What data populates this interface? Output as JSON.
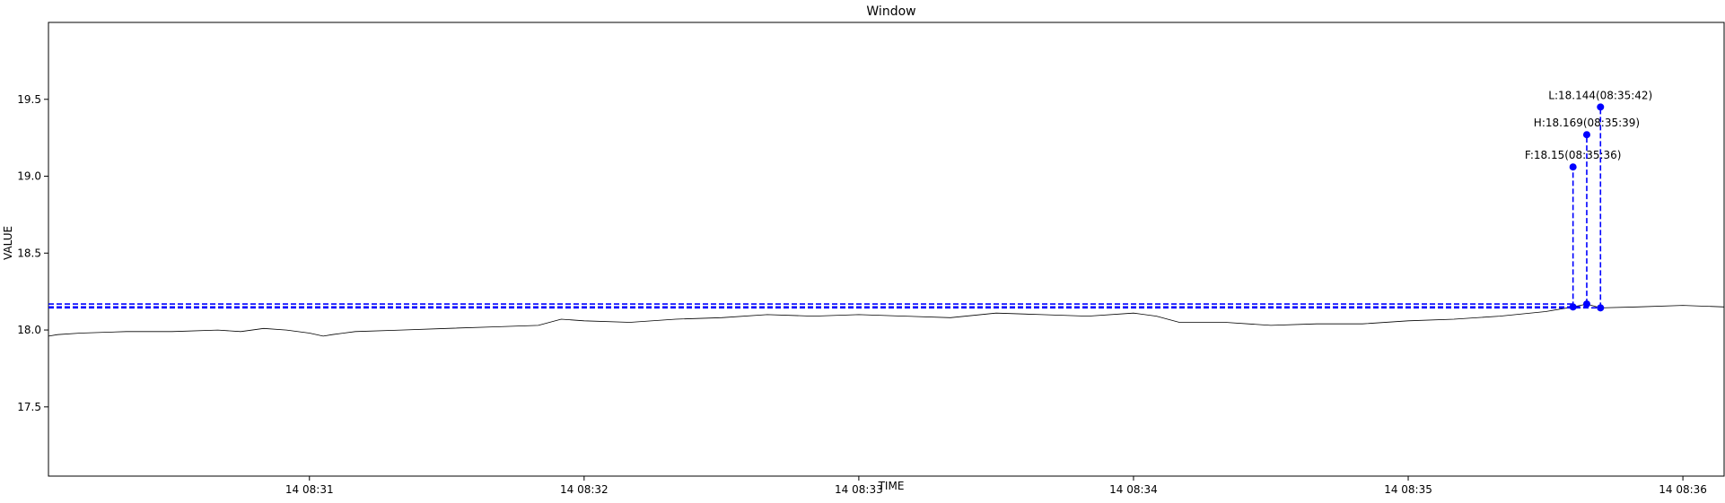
{
  "chart_data": {
    "type": "line",
    "title": "Window",
    "xlabel": "TIME",
    "ylabel": "VALUE",
    "x_range": [
      "08:30:03",
      "08:36:09"
    ],
    "ylim": [
      17.05,
      20.0
    ],
    "x_ticks": [
      {
        "label": "14 08:31",
        "t": "08:31:00"
      },
      {
        "label": "14 08:32",
        "t": "08:32:00"
      },
      {
        "label": "14 08:33",
        "t": "08:33:00"
      },
      {
        "label": "14 08:34",
        "t": "08:34:00"
      },
      {
        "label": "14 08:35",
        "t": "08:35:00"
      },
      {
        "label": "14 08:36",
        "t": "08:36:00"
      }
    ],
    "y_ticks": [
      {
        "label": "17.5",
        "v": 17.5
      },
      {
        "label": "18.0",
        "v": 18.0
      },
      {
        "label": "18.5",
        "v": 18.5
      },
      {
        "label": "19.0",
        "v": 19.0
      },
      {
        "label": "19.5",
        "v": 19.5
      }
    ],
    "series": [
      {
        "color": "#000000",
        "x": [
          "08:30:03",
          "08:30:05",
          "08:30:10",
          "08:30:20",
          "08:30:30",
          "08:30:40",
          "08:30:45",
          "08:30:50",
          "08:30:55",
          "08:31:00",
          "08:31:03",
          "08:31:05",
          "08:31:10",
          "08:31:20",
          "08:31:30",
          "08:31:40",
          "08:31:50",
          "08:31:55",
          "08:32:00",
          "08:32:10",
          "08:32:20",
          "08:32:30",
          "08:32:40",
          "08:32:50",
          "08:33:00",
          "08:33:10",
          "08:33:20",
          "08:33:30",
          "08:33:40",
          "08:33:50",
          "08:34:00",
          "08:34:05",
          "08:34:10",
          "08:34:20",
          "08:34:30",
          "08:34:40",
          "08:34:50",
          "08:35:00",
          "08:35:10",
          "08:35:20",
          "08:35:30",
          "08:35:36",
          "08:35:39",
          "08:35:42",
          "08:35:50",
          "08:36:00",
          "08:36:09"
        ],
        "values": [
          17.96,
          17.97,
          17.98,
          17.99,
          17.99,
          18.0,
          17.99,
          18.01,
          18.0,
          17.98,
          17.96,
          17.97,
          17.99,
          18.0,
          18.01,
          18.02,
          18.03,
          18.07,
          18.06,
          18.05,
          18.07,
          18.08,
          18.1,
          18.09,
          18.1,
          18.09,
          18.08,
          18.11,
          18.1,
          18.09,
          18.11,
          18.09,
          18.05,
          18.05,
          18.03,
          18.04,
          18.04,
          18.06,
          18.07,
          18.09,
          18.12,
          18.15,
          18.169,
          18.144,
          18.15,
          18.16,
          18.15
        ]
      }
    ],
    "hlines": [
      {
        "y": 18.169,
        "style": "dashed",
        "color": "#0000ff"
      },
      {
        "y": 18.15,
        "style": "dashed",
        "color": "#0000ff"
      },
      {
        "y": 18.144,
        "style": "dashed",
        "color": "#0000ff"
      }
    ],
    "markers": [
      {
        "label": "F:18.15(08:35:36)",
        "t": "08:35:36",
        "value": 18.15,
        "stem_top": 19.06,
        "color": "#0000ff"
      },
      {
        "label": "H:18.169(08:35:39)",
        "t": "08:35:39",
        "value": 18.169,
        "stem_top": 19.27,
        "color": "#0000ff"
      },
      {
        "label": "L:18.144(08:35:42)",
        "t": "08:35:42",
        "value": 18.144,
        "stem_top": 19.45,
        "color": "#0000ff"
      }
    ]
  }
}
